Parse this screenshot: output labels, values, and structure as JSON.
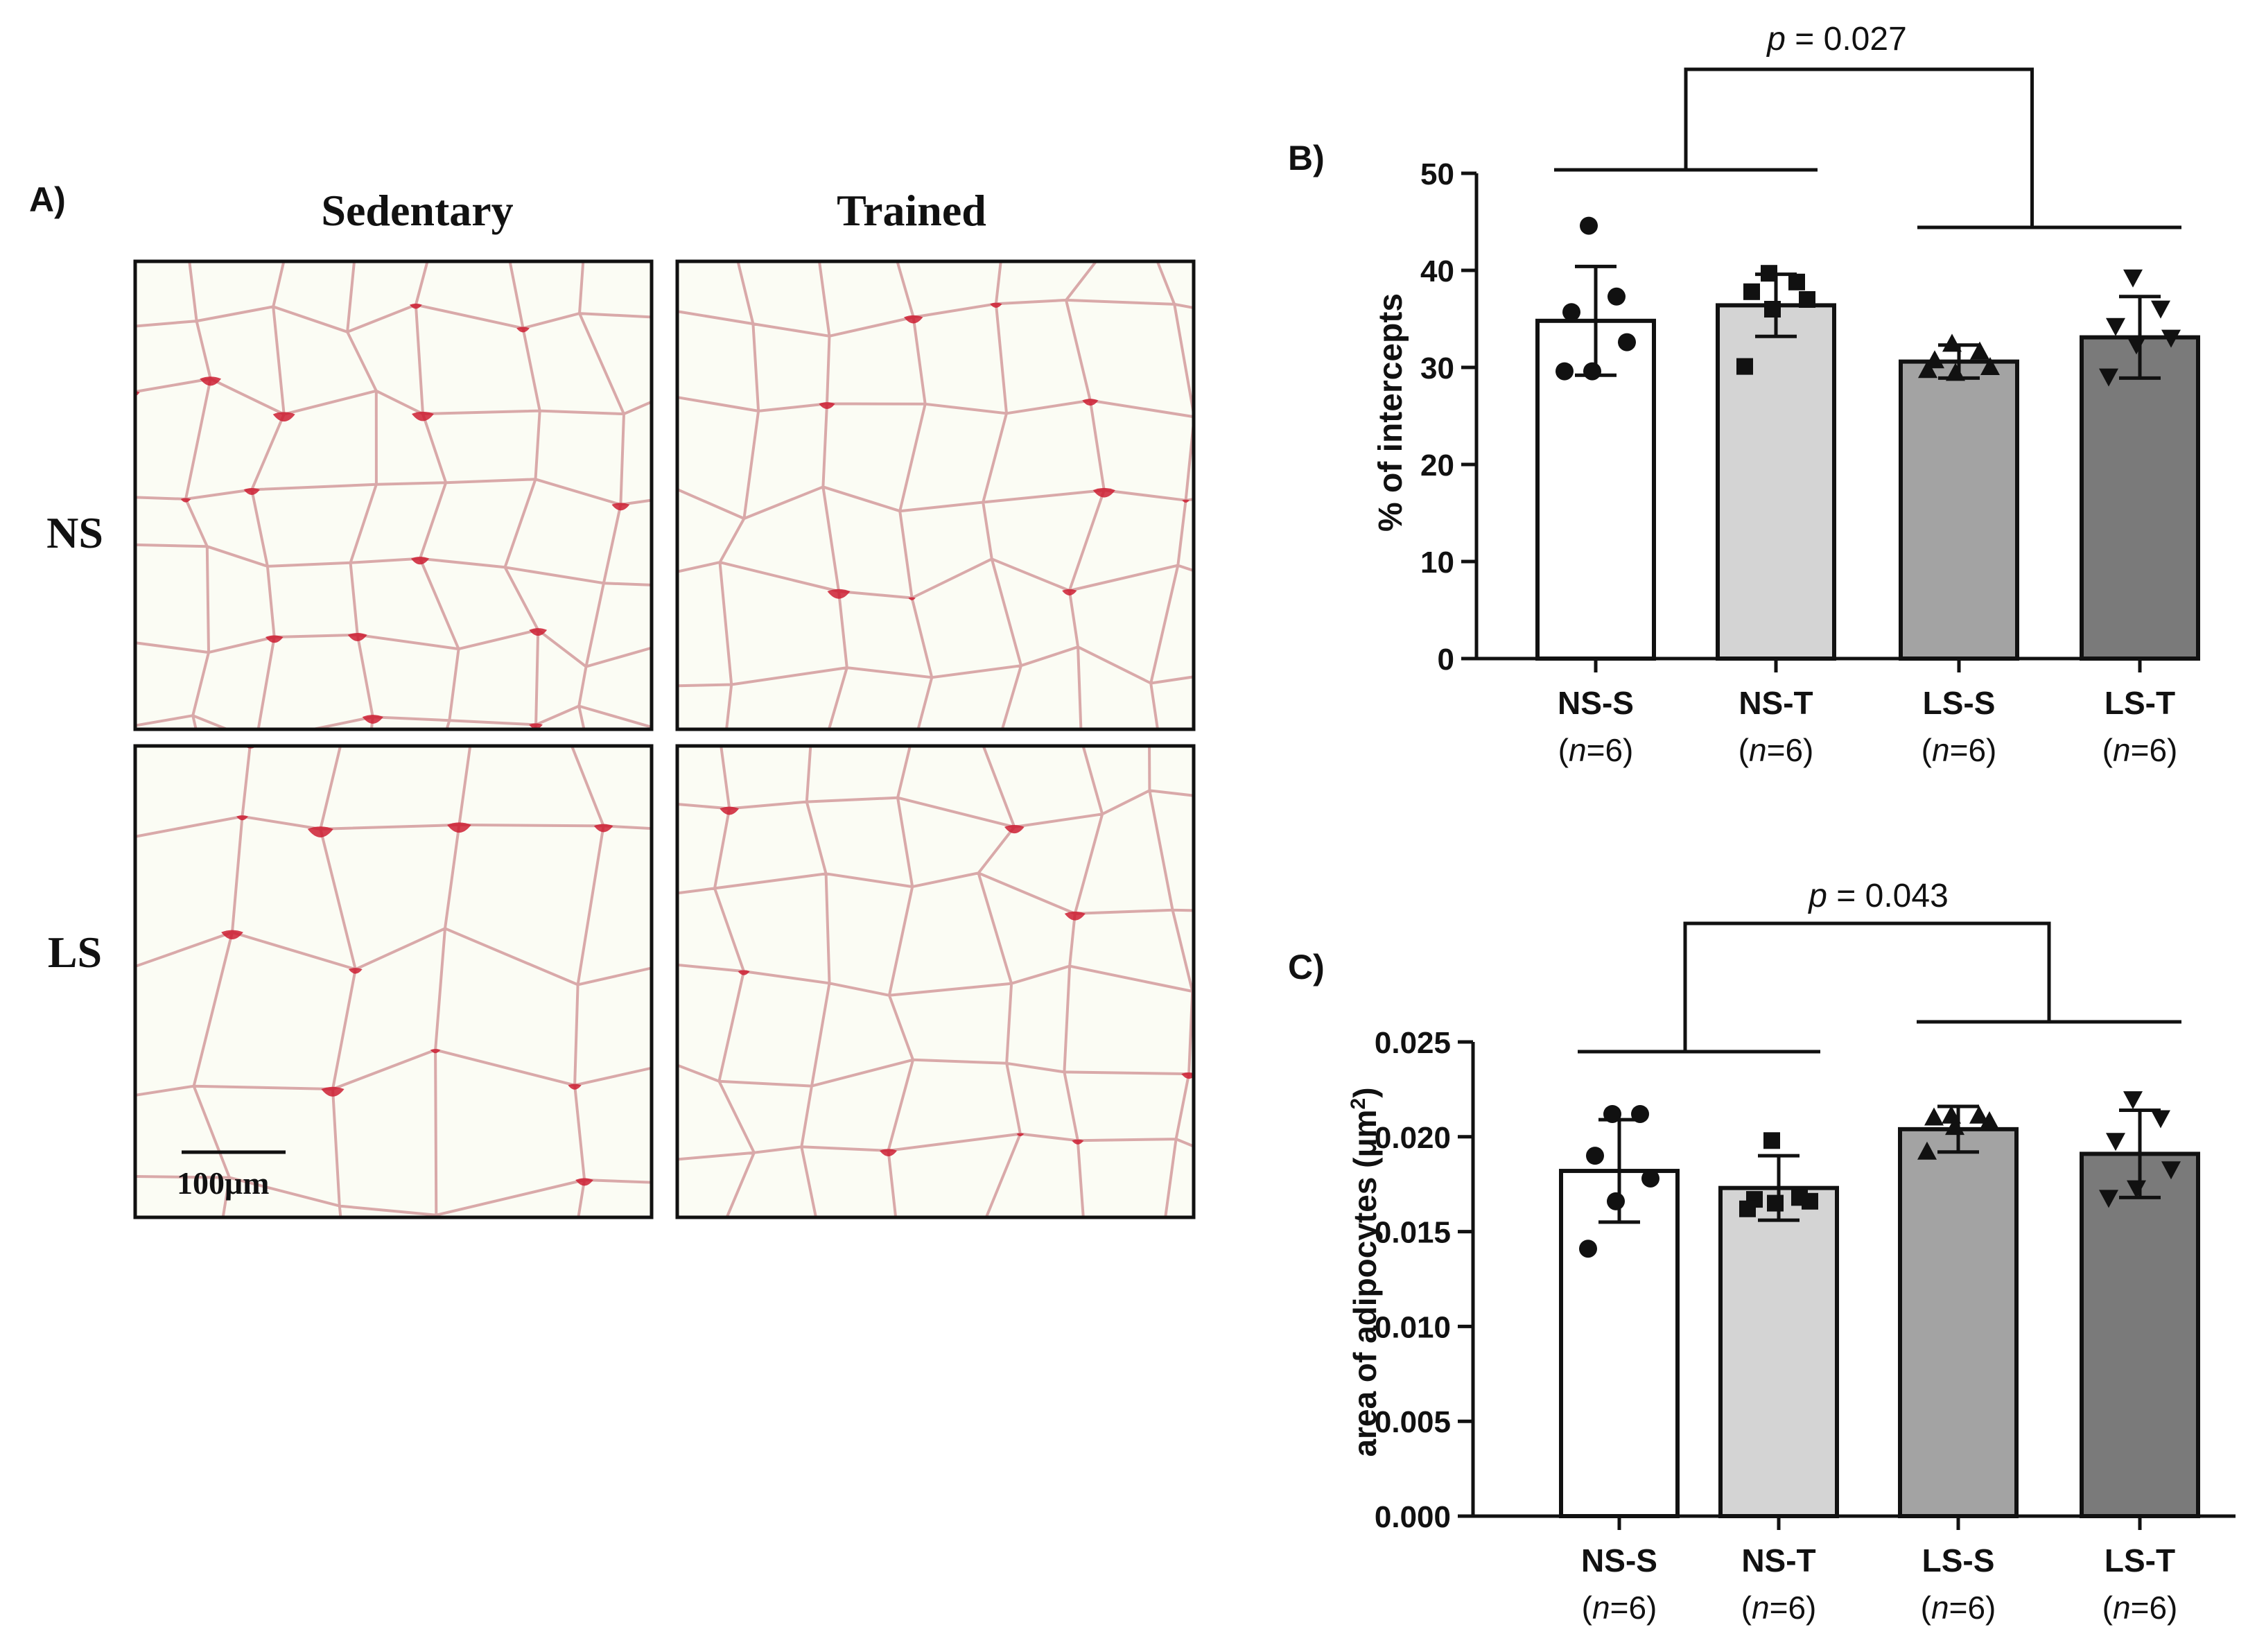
{
  "panel_a": {
    "label": "A)",
    "columns": [
      "Sedentary",
      "Trained"
    ],
    "rows": [
      "NS",
      "LS"
    ],
    "scale_bar_label": "100μm",
    "stain_color": "#cc1f33",
    "background_color": "#f3f4e4"
  },
  "chart_data": [
    {
      "panel_label": "B)",
      "type": "bar",
      "categories": [
        "NS-S",
        "NS-T",
        "LS-S",
        "LS-T"
      ],
      "n_labels": [
        "(n=6)",
        "(n=6)",
        "(n=6)",
        "(n=6)"
      ],
      "values": [
        34.8,
        36.4,
        30.6,
        33.1
      ],
      "error": [
        5.6,
        3.2,
        1.7,
        4.2
      ],
      "points": [
        [
          44.6,
          37.3,
          35.7,
          32.6,
          29.6,
          29.6
        ],
        [
          39.7,
          38.8,
          37.8,
          37.0,
          36.0,
          30.1
        ],
        [
          32.4,
          31.6,
          30.7,
          30.0,
          29.4,
          29.7
        ],
        [
          39.3,
          36.1,
          34.3,
          33.1,
          32.4,
          29.1
        ]
      ],
      "markers": [
        "circle",
        "square",
        "triangle-up",
        "triangle-down"
      ],
      "bar_colors": [
        "#ffffff",
        "#d4d4d4",
        "#a3a3a3",
        "#7a7a7a"
      ],
      "ylabel": "% of intercepts",
      "ylim": [
        0,
        50
      ],
      "yticks": [
        "0",
        "10",
        "20",
        "30",
        "40",
        "50"
      ],
      "yticks_values": [
        0,
        10,
        20,
        30,
        40,
        50
      ],
      "comparison": {
        "text": "p = 0.027",
        "p_letter": "p",
        "p_rest": " = 0.027",
        "group_a": [
          0,
          1
        ],
        "group_b": [
          2,
          3
        ]
      }
    },
    {
      "panel_label": "C)",
      "type": "bar",
      "categories": [
        "NS-S",
        "NS-T",
        "LS-S",
        "LS-T"
      ],
      "n_labels": [
        "(n=6)",
        "(n=6)",
        "(n=6)",
        "(n=6)"
      ],
      "values": [
        0.0182,
        0.0173,
        0.0204,
        0.0191
      ],
      "error": [
        0.0027,
        0.0017,
        0.0012,
        0.0023
      ],
      "points": [
        [
          0.0212,
          0.0212,
          0.019,
          0.0178,
          0.0166,
          0.0141
        ],
        [
          0.0198,
          0.0168,
          0.0167,
          0.0166,
          0.0165,
          0.0162
        ],
        [
          0.0211,
          0.0211,
          0.021,
          0.0208,
          0.0205,
          0.0192
        ],
        [
          0.022,
          0.021,
          0.0198,
          0.0183,
          0.0173,
          0.0168
        ]
      ],
      "markers": [
        "circle",
        "square",
        "triangle-up",
        "triangle-down"
      ],
      "bar_colors": [
        "#ffffff",
        "#d4d4d4",
        "#a3a3a3",
        "#7a7a7a"
      ],
      "ylabel": "area of adipocytes (μm²)",
      "ylabel_main": "area of adipocytes (μm",
      "ylabel_sup": "2",
      "ylabel_close": ")",
      "ylim": [
        0,
        0.025
      ],
      "yticks": [
        "0.000",
        "0.005",
        "0.010",
        "0.015",
        "0.020",
        "0.025"
      ],
      "yticks_values": [
        0,
        0.005,
        0.01,
        0.015,
        0.02,
        0.025
      ],
      "comparison": {
        "text": "p = 0.043",
        "p_letter": "p",
        "p_rest": " = 0.043",
        "group_a": [
          0,
          1
        ],
        "group_b": [
          2,
          3
        ]
      }
    }
  ]
}
